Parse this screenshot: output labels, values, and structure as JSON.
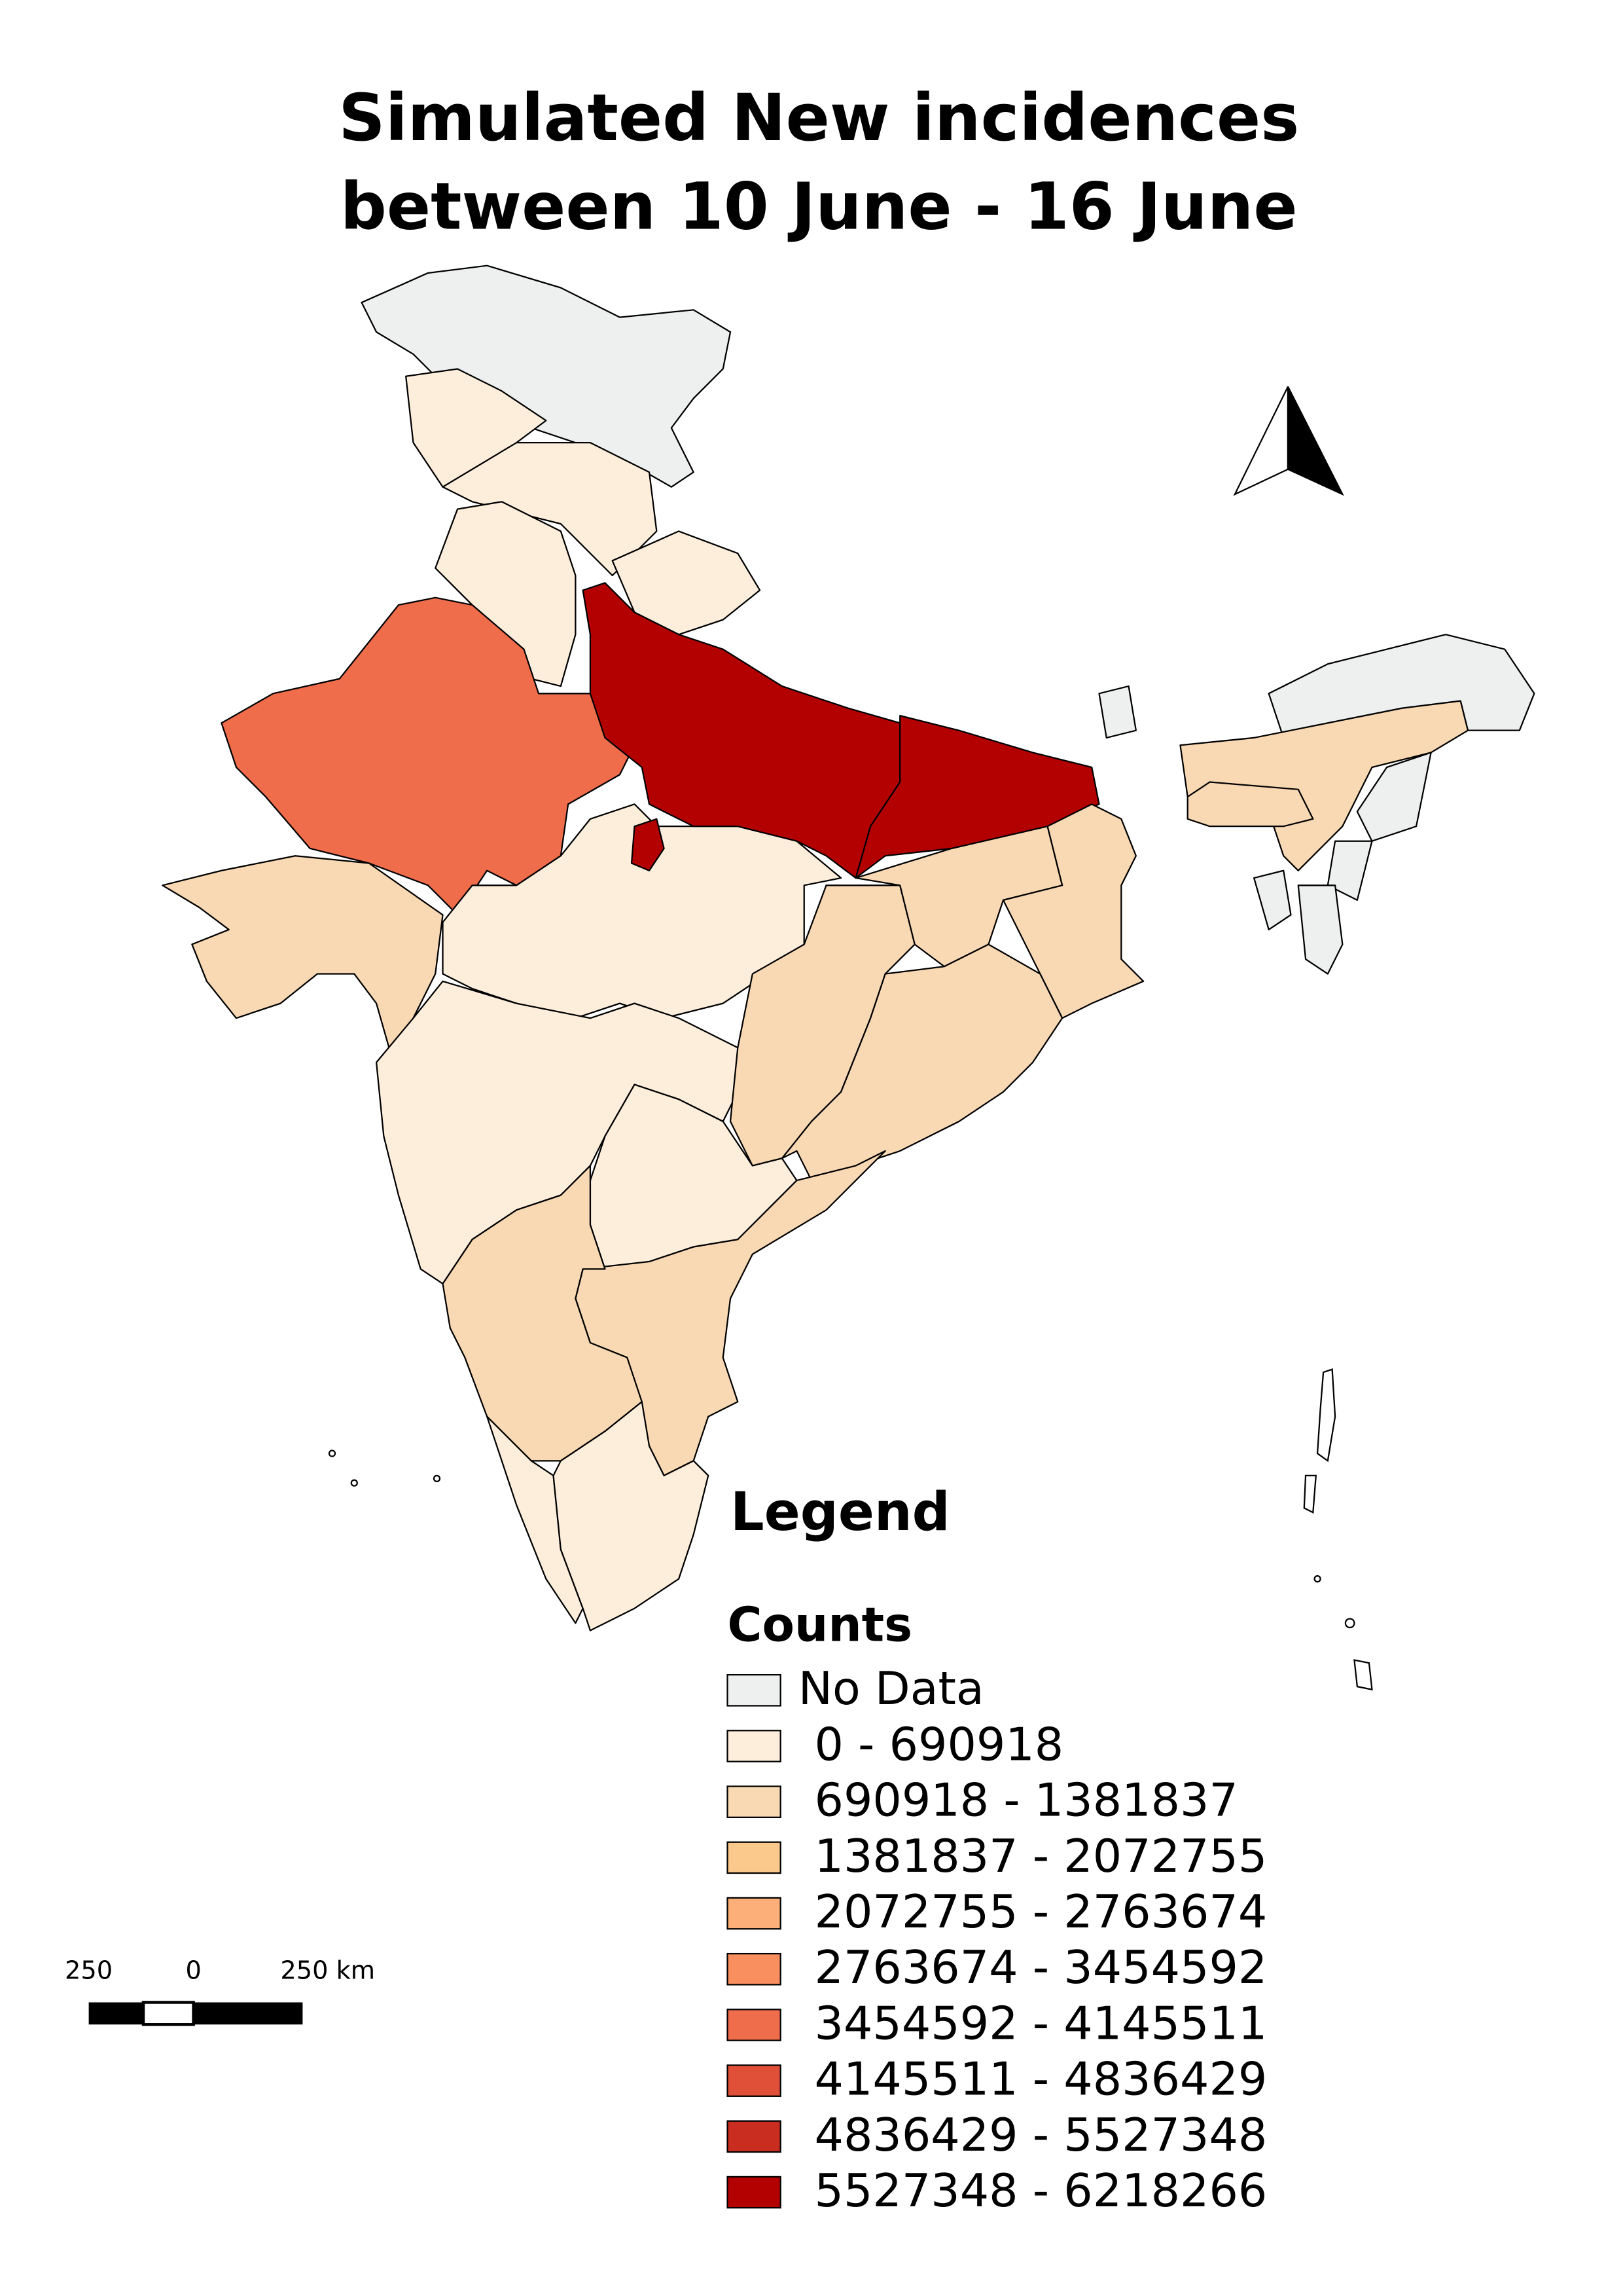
{
  "title": [
    "Simulated New incidences",
    "between 10 June - 16 June"
  ],
  "legend": {
    "title": "Legend",
    "heading": "Counts",
    "items": [
      {
        "label": "No Data",
        "color": "#eef0f0"
      },
      {
        "label": "0 - 690918",
        "color": "#fdeedc"
      },
      {
        "label": "690918 - 1381837",
        "color": "#f9d9b3"
      },
      {
        "label": "1381837 - 2072755",
        "color": "#fcc98c"
      },
      {
        "label": "2072755 - 2763674",
        "color": "#fcaf78"
      },
      {
        "label": "2763674 - 3454592",
        "color": "#f98f5f"
      },
      {
        "label": "3454592 - 4145511",
        "color": "#ef6d4b"
      },
      {
        "label": "4145511 - 4836429",
        "color": "#e04f38"
      },
      {
        "label": "4836429 - 5527348",
        "color": "#c92d1f"
      },
      {
        "label": "5527348 - 6218266",
        "color": "#b30000"
      }
    ]
  },
  "scale_bar": {
    "labels": [
      "250",
      "0",
      "250 km"
    ]
  }
}
